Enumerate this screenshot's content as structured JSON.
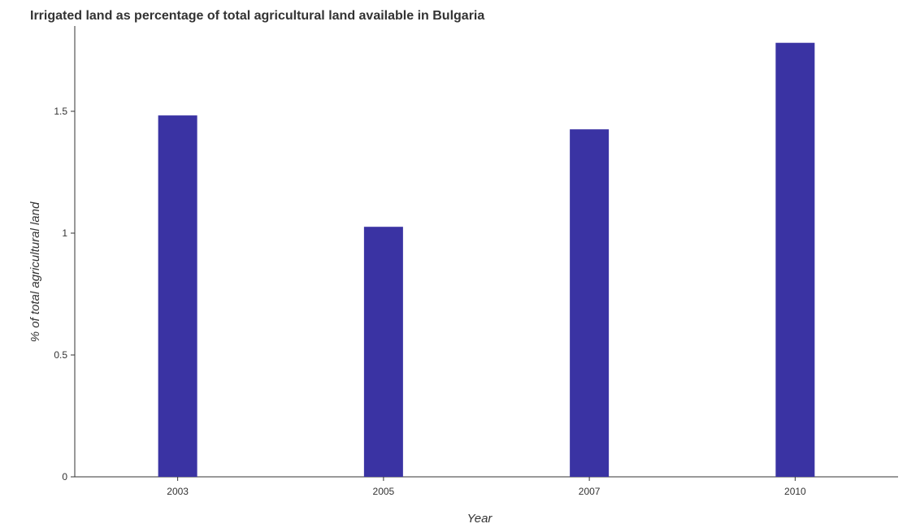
{
  "chart_data": {
    "type": "bar",
    "title": "Irrigated land as percentage of total agricultural land available in Bulgaria",
    "xlabel": "Year",
    "ylabel": "% of total agricultural land",
    "categories": [
      "2003",
      "2005",
      "2007",
      "2010"
    ],
    "values": [
      1.483,
      1.026,
      1.426,
      1.781
    ],
    "ylim": [
      0,
      1.85
    ],
    "yticks": [
      0,
      0.5,
      1,
      1.5
    ],
    "ytick_labels": [
      "0",
      "0.5",
      "1",
      "1.5"
    ],
    "grid": false,
    "legend": "none",
    "bar_color": "#3a33a3"
  }
}
